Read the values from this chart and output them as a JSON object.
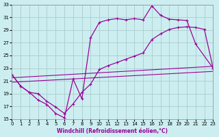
{
  "xlabel": "Windchill (Refroidissement éolien,°C)",
  "bg_color": "#cceef0",
  "line_color": "#990099",
  "grid_color": "#aacccc",
  "xlim": [
    0,
    23
  ],
  "ylim": [
    15,
    33
  ],
  "xticks": [
    0,
    1,
    2,
    3,
    4,
    5,
    6,
    7,
    8,
    9,
    10,
    11,
    12,
    13,
    14,
    15,
    16,
    17,
    18,
    19,
    20,
    21,
    22,
    23
  ],
  "yticks": [
    15,
    17,
    19,
    21,
    23,
    25,
    27,
    29,
    31,
    33
  ],
  "line1_x": [
    0,
    1,
    2,
    3,
    4,
    5,
    6,
    7,
    8,
    9,
    10,
    11,
    12,
    13,
    14,
    15,
    16,
    17,
    18,
    19,
    20,
    21,
    23
  ],
  "line1_y": [
    22.0,
    20.2,
    19.2,
    18.0,
    17.3,
    15.9,
    15.2,
    21.3,
    18.2,
    27.8,
    30.2,
    30.6,
    30.8,
    30.6,
    30.8,
    30.6,
    32.8,
    31.3,
    30.7,
    30.6,
    30.5,
    26.8,
    23.0
  ],
  "line2_x": [
    0,
    1,
    2,
    3,
    4,
    5,
    6,
    7,
    8,
    9,
    10,
    11,
    12,
    13,
    14,
    15,
    16,
    17,
    18,
    19,
    20,
    21,
    22,
    23
  ],
  "line2_y": [
    22.0,
    20.2,
    19.2,
    19.0,
    17.8,
    16.9,
    15.9,
    17.4,
    19.2,
    20.5,
    22.8,
    23.4,
    23.9,
    24.4,
    24.9,
    25.4,
    27.5,
    28.4,
    29.1,
    29.4,
    29.5,
    29.4,
    29.1,
    23.0
  ],
  "line3_x": [
    0,
    23
  ],
  "line3_y": [
    20.8,
    22.5
  ],
  "line4_x": [
    0,
    23
  ],
  "line4_y": [
    21.5,
    23.3
  ]
}
